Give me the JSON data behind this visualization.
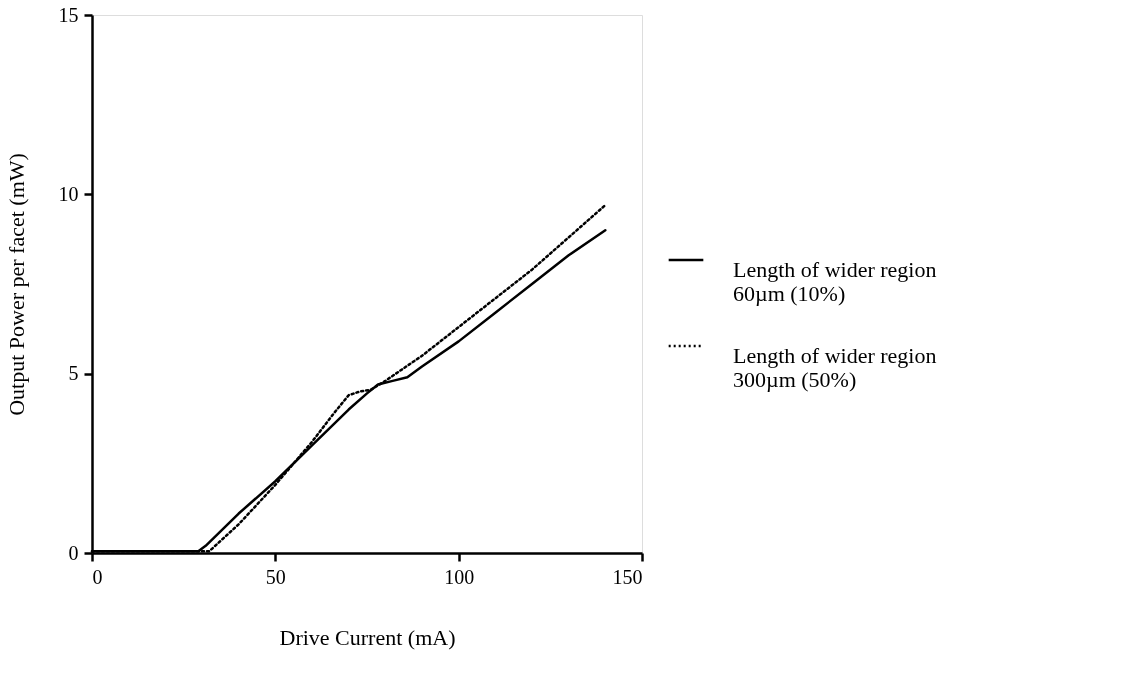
{
  "chart_data": {
    "type": "line",
    "xlabel": "Drive Current (mA)",
    "ylabel": "Output Power per facet (mW)",
    "xlim": [
      0,
      150
    ],
    "xticks": [
      0,
      50,
      100,
      150
    ],
    "ylim": [
      0,
      15
    ],
    "yticks": [
      0,
      5,
      10,
      15
    ],
    "grid": false,
    "legend": "right",
    "marker": "none",
    "series": [
      {
        "name": "Length of wider region 60µm (10%)",
        "color": "#000000",
        "line_style": "solid",
        "x": [
          0,
          10,
          20,
          29,
          31,
          40,
          50,
          60,
          70,
          75,
          78,
          82,
          86,
          90,
          100,
          110,
          120,
          130,
          140
        ],
        "values": [
          0.05,
          0.05,
          0.05,
          0.05,
          0.2,
          1.1,
          2.0,
          3.0,
          4.0,
          4.45,
          4.7,
          4.8,
          4.9,
          5.2,
          5.9,
          6.7,
          7.5,
          8.3,
          9.0
        ]
      },
      {
        "name": "Length of wider region 300µm (50%)",
        "color": "#000000",
        "line_style": "dotted",
        "x": [
          0,
          10,
          20,
          30,
          32,
          40,
          50,
          60,
          66,
          70,
          73,
          76,
          80,
          90,
          100,
          110,
          120,
          130,
          140
        ],
        "values": [
          0.05,
          0.05,
          0.05,
          0.05,
          0.05,
          0.8,
          1.9,
          3.1,
          3.9,
          4.4,
          4.5,
          4.55,
          4.8,
          5.5,
          6.3,
          7.1,
          7.9,
          8.8,
          9.7
        ]
      }
    ]
  }
}
